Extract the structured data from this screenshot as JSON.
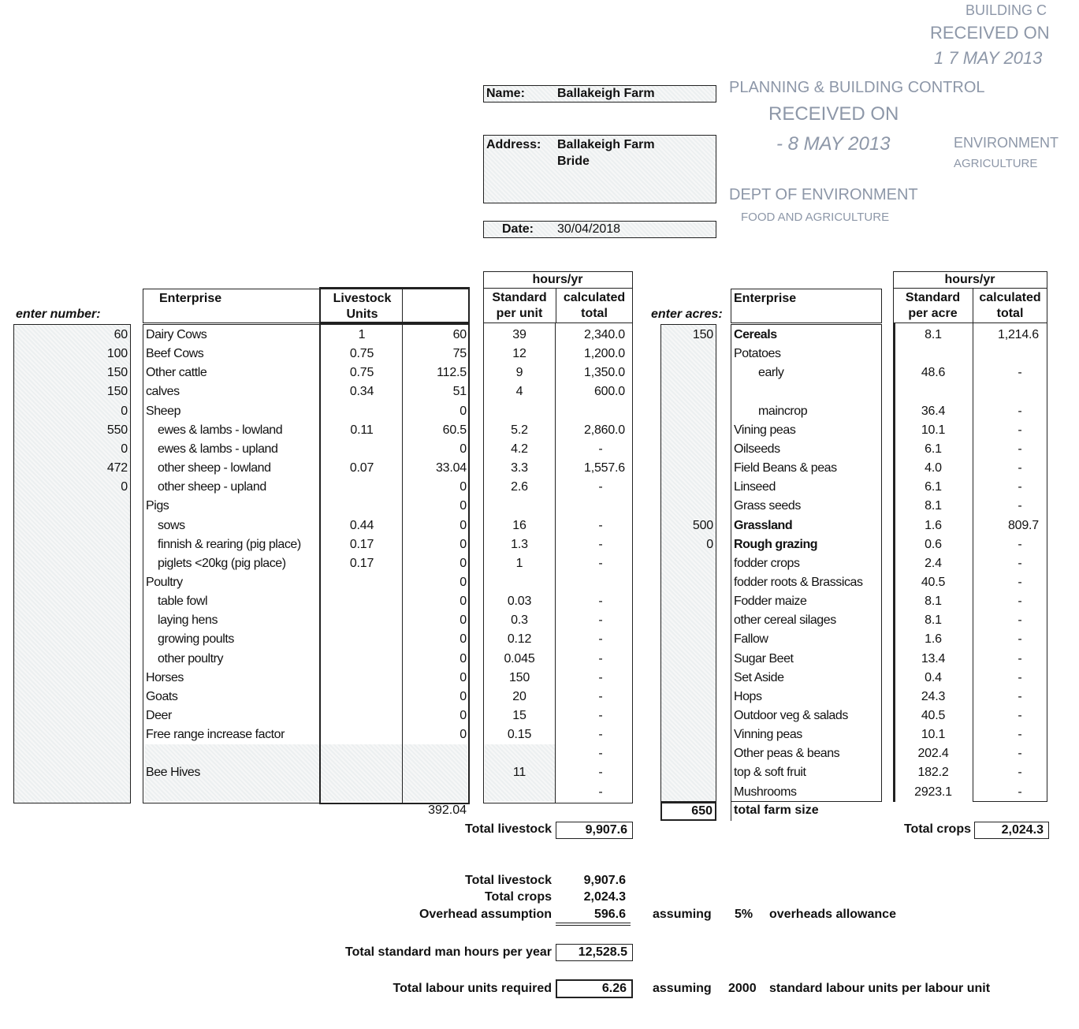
{
  "header": {
    "name_label": "Name:",
    "name_value": "Ballakeigh Farm",
    "address_label": "Address:",
    "address_line1": "Ballakeigh Farm",
    "address_line2": "Bride",
    "date_label": "Date:",
    "date_value": "30/04/2018"
  },
  "stamps": {
    "stamp1_arc": "PLANNING & BUILDING CONTROL",
    "stamp1_mid": "RECEIVED ON",
    "stamp1_date": "- 8 MAY 2013",
    "stamp1_bottom1": "DEPT OF ENVIRONMENT",
    "stamp1_bottom2": "FOOD AND AGRICULTURE",
    "stamp2_top": "BUILDING C",
    "stamp2_mid": "RECEIVED ON",
    "stamp2_date": "1 7 MAY 2013",
    "stamp2_right1": "ENVIRONMENT",
    "stamp2_right2": "AGRICULTURE",
    "ink_color": "#8d97a8"
  },
  "livestock": {
    "enter_label": "enter number:",
    "hours_header": "hours/yr",
    "col_enterprise": "Enterprise",
    "col_lu_1": "Livestock",
    "col_lu_2": "Units",
    "col_std_1": "Standard",
    "col_std_2": "per unit",
    "col_calc_1": "calculated",
    "col_calc_2": "total",
    "rows": [
      {
        "num": "60",
        "name": "Dairy Cows",
        "indent": false,
        "lu": "1",
        "lut": "60",
        "std": "39",
        "calc": "2,340.0"
      },
      {
        "num": "100",
        "name": "Beef Cows",
        "indent": false,
        "lu": "0.75",
        "lut": "75",
        "std": "12",
        "calc": "1,200.0"
      },
      {
        "num": "150",
        "name": "Other cattle",
        "indent": false,
        "lu": "0.75",
        "lut": "112.5",
        "std": "9",
        "calc": "1,350.0"
      },
      {
        "num": "150",
        "name": "calves",
        "indent": false,
        "lu": "0.34",
        "lut": "51",
        "std": "4",
        "calc": "600.0"
      },
      {
        "num": "0",
        "name": "Sheep",
        "indent": false,
        "lu": "",
        "lut": "0",
        "std": "",
        "calc": ""
      },
      {
        "num": "550",
        "name": "ewes & lambs - lowland",
        "indent": true,
        "lu": "0.11",
        "lut": "60.5",
        "std": "5.2",
        "calc": "2,860.0"
      },
      {
        "num": "0",
        "name": "ewes & lambs - upland",
        "indent": true,
        "lu": "",
        "lut": "0",
        "std": "4.2",
        "calc": "-"
      },
      {
        "num": "472",
        "name": "other sheep - lowland",
        "indent": true,
        "lu": "0.07",
        "lut": "33.04",
        "std": "3.3",
        "calc": "1,557.6"
      },
      {
        "num": "0",
        "name": "other sheep - upland",
        "indent": true,
        "lu": "",
        "lut": "0",
        "std": "2.6",
        "calc": "-"
      },
      {
        "num": "",
        "name": "Pigs",
        "indent": false,
        "lu": "",
        "lut": "0",
        "std": "",
        "calc": ""
      },
      {
        "num": "",
        "name": "sows",
        "indent": true,
        "lu": "0.44",
        "lut": "0",
        "std": "16",
        "calc": "-"
      },
      {
        "num": "",
        "name": "finnish & rearing (pig place)",
        "indent": true,
        "lu": "0.17",
        "lut": "0",
        "std": "1.3",
        "calc": "-"
      },
      {
        "num": "",
        "name": "piglets <20kg (pig place)",
        "indent": true,
        "lu": "0.17",
        "lut": "0",
        "std": "1",
        "calc": "-"
      },
      {
        "num": "",
        "name": "Poultry",
        "indent": false,
        "lu": "",
        "lut": "0",
        "std": "",
        "calc": ""
      },
      {
        "num": "",
        "name": "table fowl",
        "indent": true,
        "lu": "",
        "lut": "0",
        "std": "0.03",
        "calc": "-"
      },
      {
        "num": "",
        "name": "laying hens",
        "indent": true,
        "lu": "",
        "lut": "0",
        "std": "0.3",
        "calc": "-"
      },
      {
        "num": "",
        "name": "growing poults",
        "indent": true,
        "lu": "",
        "lut": "0",
        "std": "0.12",
        "calc": "-"
      },
      {
        "num": "",
        "name": "other poultry",
        "indent": true,
        "lu": "",
        "lut": "0",
        "std": "0.045",
        "calc": "-"
      },
      {
        "num": "",
        "name": "Horses",
        "indent": false,
        "lu": "",
        "lut": "0",
        "std": "150",
        "calc": "-"
      },
      {
        "num": "",
        "name": "Goats",
        "indent": false,
        "lu": "",
        "lut": "0",
        "std": "20",
        "calc": "-"
      },
      {
        "num": "",
        "name": "Deer",
        "indent": false,
        "lu": "",
        "lut": "0",
        "std": "15",
        "calc": "-"
      },
      {
        "num": "",
        "name": "Free range increase factor",
        "indent": false,
        "lu": "",
        "lut": "0",
        "std": "0.15",
        "calc": "-"
      },
      {
        "num": "",
        "name": "",
        "indent": false,
        "lu": "",
        "lut": "",
        "std": "",
        "calc": "-"
      },
      {
        "num": "",
        "name": "Bee Hives",
        "indent": false,
        "lu": "",
        "lut": "",
        "std": "11",
        "calc": "-"
      },
      {
        "num": "",
        "name": "",
        "indent": false,
        "lu": "",
        "lut": "",
        "std": "",
        "calc": "-"
      }
    ],
    "lu_total": "392.04",
    "total_label": "Total livestock",
    "total_value": "9,907.6"
  },
  "crops": {
    "enter_label": "enter acres:",
    "hours_header": "hours/yr",
    "col_enterprise": "Enterprise",
    "col_std_1": "Standard",
    "col_std_2": "per acre",
    "col_calc_1": "calculated",
    "col_calc_2": "total",
    "rows": [
      {
        "acres": "150",
        "name": "Cereals",
        "bold": true,
        "indent": false,
        "std": "8.1",
        "calc": "1,214.6"
      },
      {
        "acres": "",
        "name": "Potatoes",
        "bold": false,
        "indent": false,
        "std": "",
        "calc": ""
      },
      {
        "acres": "",
        "name": "early",
        "bold": false,
        "indent": true,
        "std": "48.6",
        "calc": "-"
      },
      {
        "acres": "",
        "name": "",
        "bold": false,
        "indent": false,
        "std": "",
        "calc": ""
      },
      {
        "acres": "",
        "name": "maincrop",
        "bold": false,
        "indent": true,
        "std": "36.4",
        "calc": "-"
      },
      {
        "acres": "",
        "name": "Vining peas",
        "bold": false,
        "indent": false,
        "std": "10.1",
        "calc": "-"
      },
      {
        "acres": "",
        "name": "Oilseeds",
        "bold": false,
        "indent": false,
        "std": "6.1",
        "calc": "-"
      },
      {
        "acres": "",
        "name": "Field Beans & peas",
        "bold": false,
        "indent": false,
        "std": "4.0",
        "calc": "-"
      },
      {
        "acres": "",
        "name": "Linseed",
        "bold": false,
        "indent": false,
        "std": "6.1",
        "calc": "-"
      },
      {
        "acres": "",
        "name": "Grass seeds",
        "bold": false,
        "indent": false,
        "std": "8.1",
        "calc": "-"
      },
      {
        "acres": "500",
        "name": "Grassland",
        "bold": true,
        "indent": false,
        "std": "1.6",
        "calc": "809.7"
      },
      {
        "acres": "0",
        "name": "Rough grazing",
        "bold": true,
        "indent": false,
        "std": "0.6",
        "calc": "-"
      },
      {
        "acres": "",
        "name": "fodder crops",
        "bold": false,
        "indent": false,
        "std": "2.4",
        "calc": "-"
      },
      {
        "acres": "",
        "name": "fodder roots & Brassicas",
        "bold": false,
        "indent": false,
        "std": "40.5",
        "calc": "-"
      },
      {
        "acres": "",
        "name": "Fodder maize",
        "bold": false,
        "indent": false,
        "std": "8.1",
        "calc": "-"
      },
      {
        "acres": "",
        "name": "other cereal silages",
        "bold": false,
        "indent": false,
        "std": "8.1",
        "calc": "-"
      },
      {
        "acres": "",
        "name": "Fallow",
        "bold": false,
        "indent": false,
        "std": "1.6",
        "calc": "-"
      },
      {
        "acres": "",
        "name": "Sugar Beet",
        "bold": false,
        "indent": false,
        "std": "13.4",
        "calc": "-"
      },
      {
        "acres": "",
        "name": "Set Aside",
        "bold": false,
        "indent": false,
        "std": "0.4",
        "calc": "-"
      },
      {
        "acres": "",
        "name": "Hops",
        "bold": false,
        "indent": false,
        "std": "24.3",
        "calc": "-"
      },
      {
        "acres": "",
        "name": "Outdoor veg & salads",
        "bold": false,
        "indent": false,
        "std": "40.5",
        "calc": "-"
      },
      {
        "acres": "",
        "name": "Vinning peas",
        "bold": false,
        "indent": false,
        "std": "10.1",
        "calc": "-"
      },
      {
        "acres": "",
        "name": "Other peas & beans",
        "bold": false,
        "indent": false,
        "std": "202.4",
        "calc": "-"
      },
      {
        "acres": "",
        "name": "top & soft fruit",
        "bold": false,
        "indent": false,
        "std": "182.2",
        "calc": "-"
      },
      {
        "acres": "",
        "name": "Mushrooms",
        "bold": false,
        "indent": false,
        "std": "2923.1",
        "calc": "-"
      }
    ],
    "farm_size_value": "650",
    "farm_size_label": "total farm size",
    "total_label": "Total crops",
    "total_value": "2,024.3"
  },
  "summary": {
    "livestock_label": "Total livestock",
    "livestock_value": "9,907.6",
    "crops_label": "Total crops",
    "crops_value": "2,024.3",
    "overhead_label": "Overhead assumption",
    "overhead_value": "596.6",
    "overhead_assuming": "assuming",
    "overhead_pct": "5%",
    "overhead_text": "overheads allowance",
    "man_hours_label": "Total standard man hours per year",
    "man_hours_value": "12,528.5",
    "labour_label": "Total labour units required",
    "labour_value": "6.26",
    "labour_assuming": "assuming",
    "labour_std": "2000",
    "labour_text": "standard labour units per labour unit"
  }
}
